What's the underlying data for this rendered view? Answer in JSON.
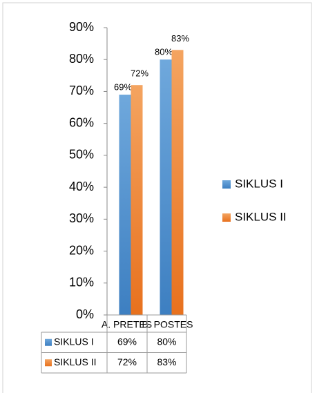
{
  "chart_data": {
    "type": "bar",
    "categories": [
      "A. PRETES",
      "B. POSTES"
    ],
    "series": [
      {
        "name": "SIKLUS I",
        "color": "#5b9bd5",
        "values": [
          69,
          80
        ],
        "value_labels": [
          "69%",
          "80%"
        ]
      },
      {
        "name": "SIKLUS II",
        "color": "#ed7d31",
        "values": [
          72,
          83
        ],
        "value_labels": [
          "72%",
          "83%"
        ]
      }
    ],
    "ylim": [
      0,
      90
    ],
    "yticks": [
      {
        "value": 0,
        "label": "0%"
      },
      {
        "value": 10,
        "label": "10%"
      },
      {
        "value": 20,
        "label": "20%"
      },
      {
        "value": 30,
        "label": "30%"
      },
      {
        "value": 40,
        "label": "40%"
      },
      {
        "value": 50,
        "label": "50%"
      },
      {
        "value": 60,
        "label": "60%"
      },
      {
        "value": 70,
        "label": "70%"
      },
      {
        "value": 80,
        "label": "80%"
      },
      {
        "value": 90,
        "label": "90%"
      }
    ],
    "legend": "right",
    "data_table": true
  }
}
